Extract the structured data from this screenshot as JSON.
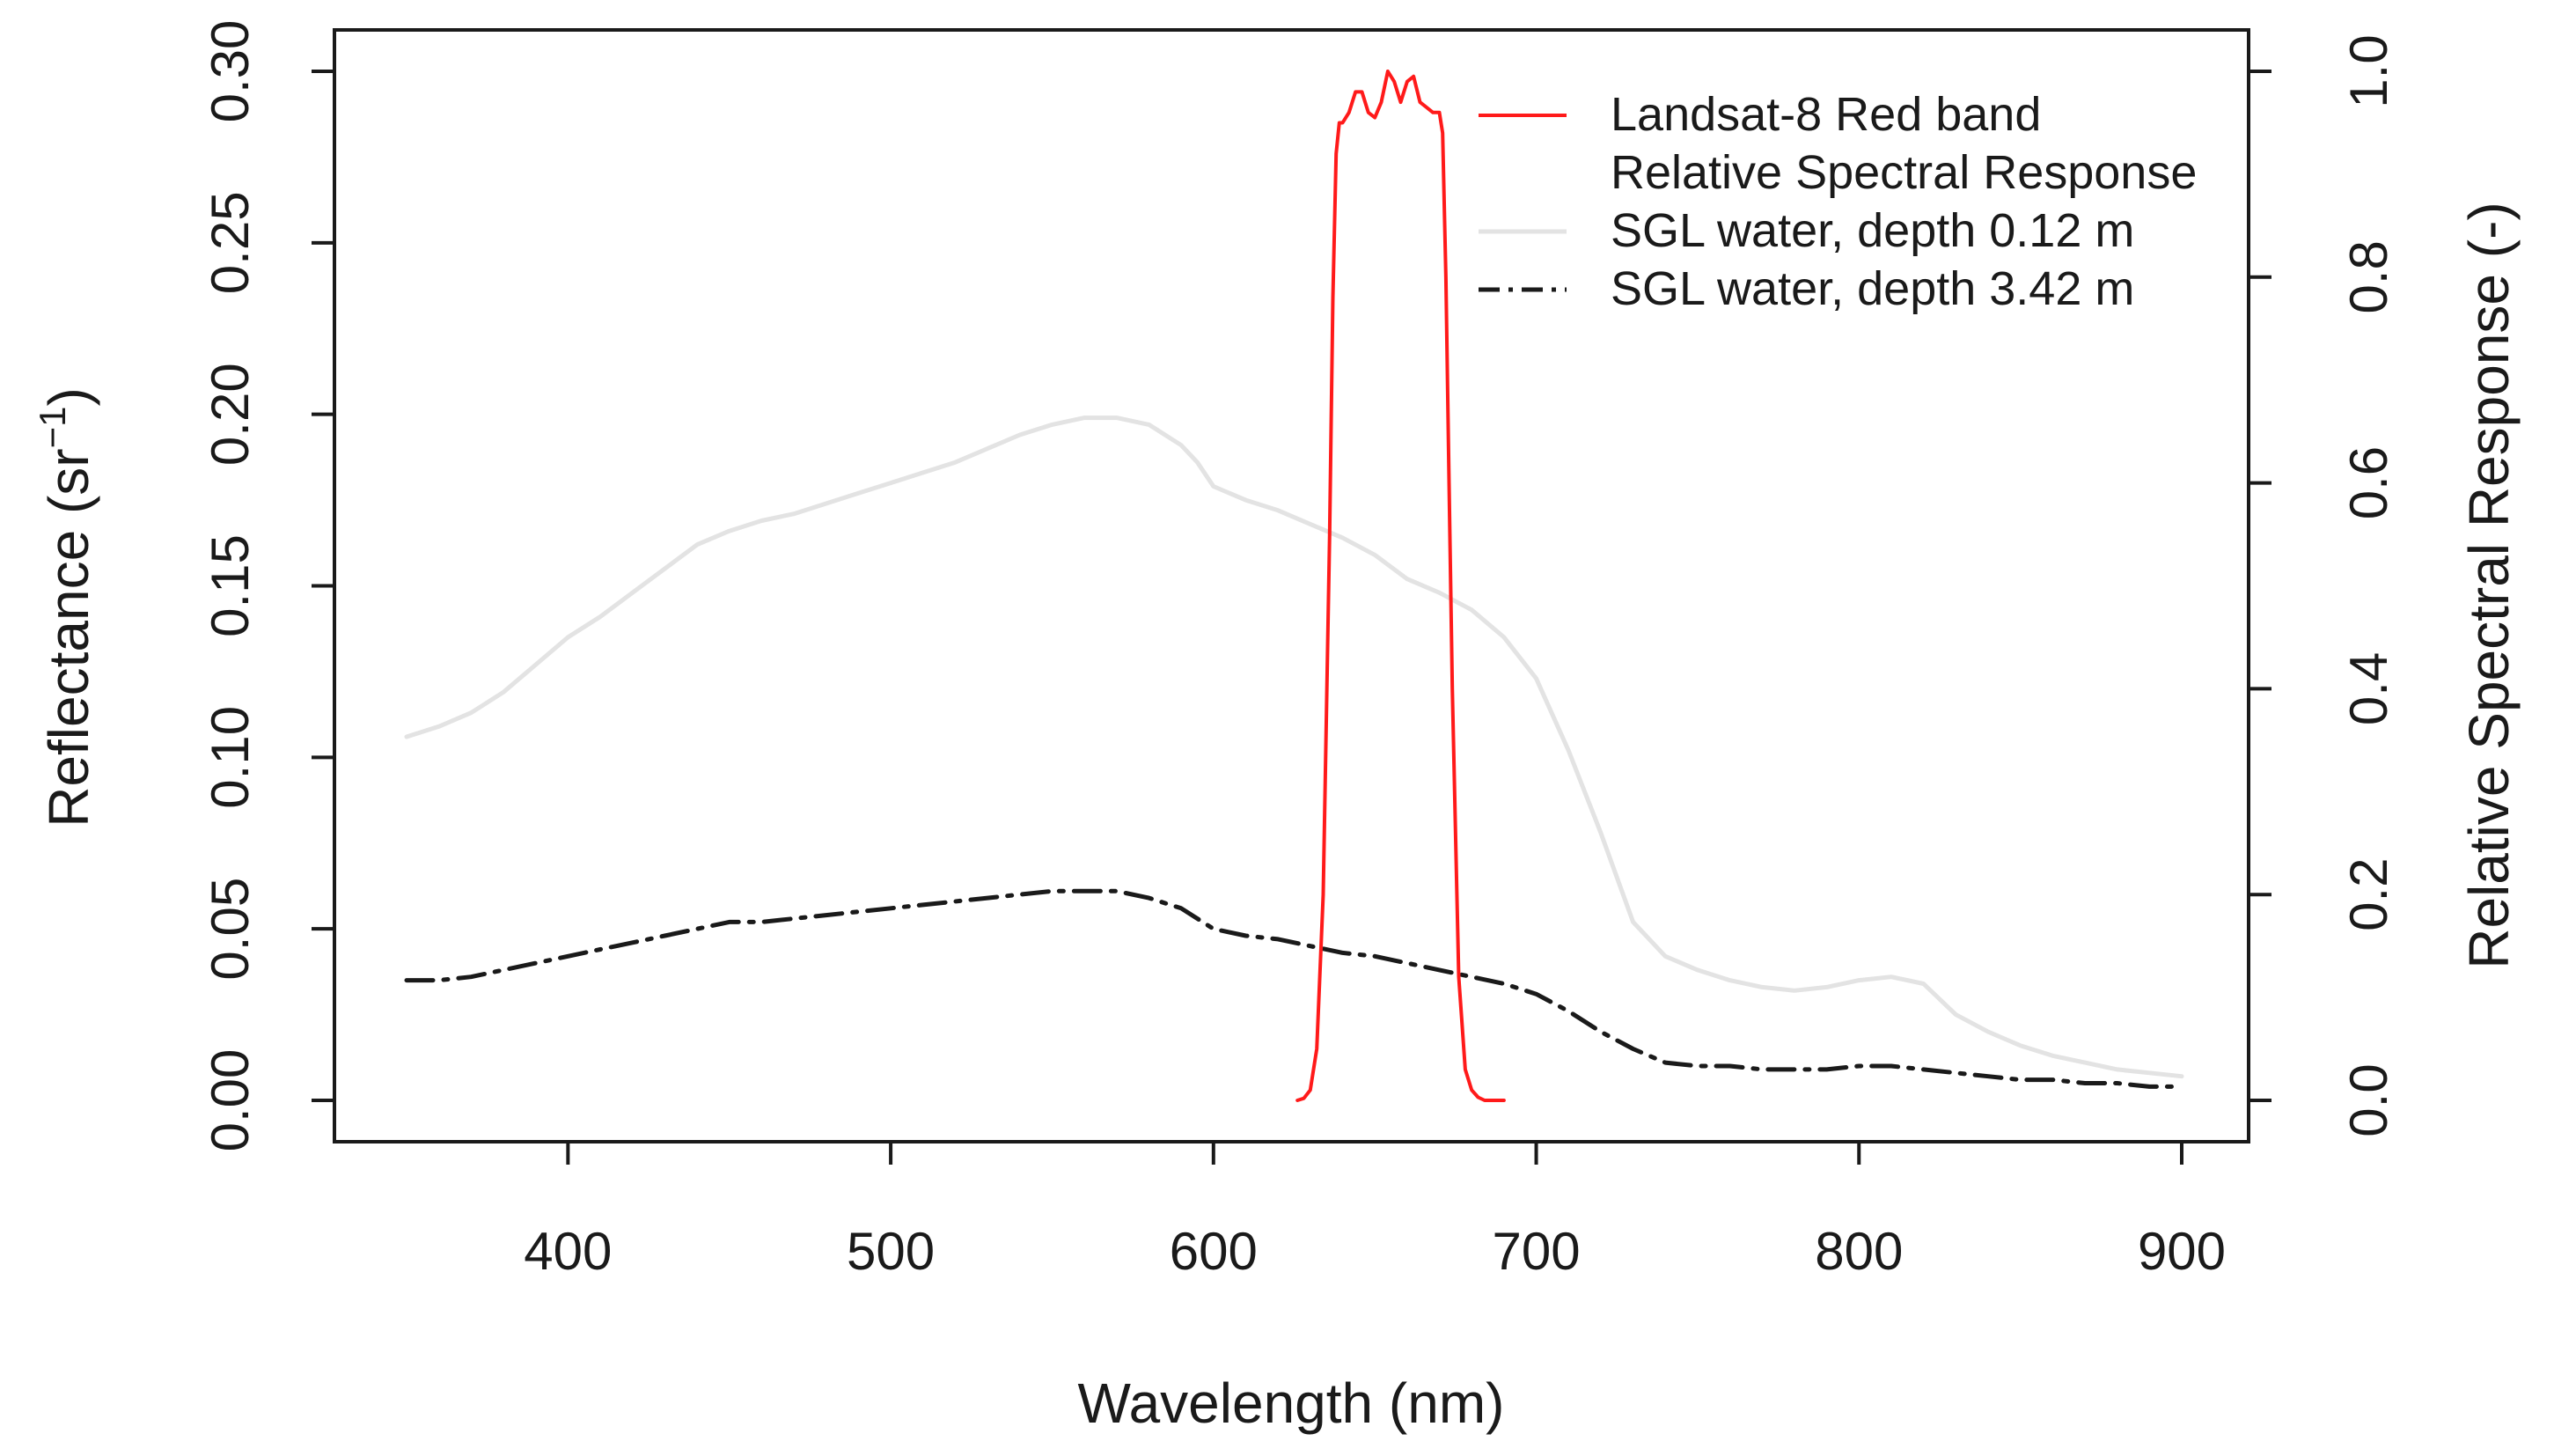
{
  "chart_data": {
    "type": "line",
    "title": "",
    "xlabel": "Wavelength (nm)",
    "ylabel": "Reflectance (sr",
    "ylabel_superscript": "−1",
    "ylabel_suffix": ")",
    "y2label": "Relative Spectral Response (-)",
    "xlim": [
      350,
      900
    ],
    "ylim": [
      0,
      0.3
    ],
    "y2lim": [
      0,
      1.0
    ],
    "xticks": [
      400,
      500,
      600,
      700,
      800,
      900
    ],
    "xtick_labels": [
      "400",
      "500",
      "600",
      "700",
      "800",
      "900"
    ],
    "yticks": [
      0.0,
      0.05,
      0.1,
      0.15,
      0.2,
      0.25,
      0.3
    ],
    "ytick_labels": [
      "0.00",
      "0.05",
      "0.10",
      "0.15",
      "0.20",
      "0.25",
      "0.30"
    ],
    "y2ticks": [
      0.0,
      0.2,
      0.4,
      0.6,
      0.8,
      1.0
    ],
    "y2tick_labels": [
      "0.0",
      "0.2",
      "0.4",
      "0.6",
      "0.8",
      "1.0"
    ],
    "grid": false,
    "legend_position": "top-right",
    "legend": {
      "entries": [
        {
          "label_lines": [
            "Landsat-8 Red band",
            "Relative Spectral Response"
          ]
        },
        {
          "label_lines": [
            "SGL water, depth 0.12 m"
          ]
        },
        {
          "label_lines": [
            "SGL water, depth 3.42 m"
          ]
        }
      ]
    },
    "series": [
      {
        "name": "SGL water, depth 0.12 m",
        "axis": "left",
        "color": "#e3e3e3",
        "dash": "solid",
        "x": [
          350,
          360,
          370,
          380,
          390,
          400,
          410,
          420,
          430,
          440,
          450,
          460,
          470,
          480,
          490,
          500,
          510,
          520,
          530,
          540,
          550,
          560,
          570,
          580,
          590,
          595,
          600,
          610,
          620,
          630,
          640,
          650,
          660,
          670,
          680,
          690,
          700,
          710,
          720,
          730,
          740,
          750,
          760,
          770,
          780,
          790,
          800,
          810,
          820,
          830,
          840,
          850,
          860,
          870,
          880,
          890,
          900
        ],
        "y": [
          0.106,
          0.109,
          0.113,
          0.119,
          0.127,
          0.135,
          0.141,
          0.148,
          0.155,
          0.162,
          0.166,
          0.169,
          0.171,
          0.174,
          0.177,
          0.18,
          0.183,
          0.186,
          0.19,
          0.194,
          0.197,
          0.199,
          0.199,
          0.197,
          0.191,
          0.186,
          0.179,
          0.175,
          0.172,
          0.168,
          0.164,
          0.159,
          0.152,
          0.148,
          0.143,
          0.135,
          0.123,
          0.102,
          0.078,
          0.052,
          0.042,
          0.038,
          0.035,
          0.033,
          0.032,
          0.033,
          0.035,
          0.036,
          0.034,
          0.025,
          0.02,
          0.016,
          0.013,
          0.011,
          0.009,
          0.008,
          0.007
        ]
      },
      {
        "name": "SGL water, depth 3.42 m",
        "axis": "left",
        "color": "#1a1a1a",
        "dash": "dash-dot",
        "x": [
          350,
          360,
          370,
          380,
          390,
          400,
          410,
          420,
          430,
          440,
          450,
          460,
          470,
          480,
          490,
          500,
          510,
          520,
          530,
          540,
          550,
          560,
          570,
          580,
          590,
          600,
          610,
          620,
          630,
          640,
          650,
          660,
          670,
          680,
          690,
          700,
          710,
          720,
          730,
          740,
          750,
          760,
          770,
          780,
          790,
          800,
          810,
          820,
          830,
          840,
          850,
          860,
          870,
          880,
          890,
          900
        ],
        "y": [
          0.035,
          0.035,
          0.036,
          0.038,
          0.04,
          0.042,
          0.044,
          0.046,
          0.048,
          0.05,
          0.052,
          0.052,
          0.053,
          0.054,
          0.055,
          0.056,
          0.057,
          0.058,
          0.059,
          0.06,
          0.061,
          0.061,
          0.061,
          0.059,
          0.056,
          0.05,
          0.048,
          0.047,
          0.045,
          0.043,
          0.042,
          0.04,
          0.038,
          0.036,
          0.034,
          0.031,
          0.026,
          0.02,
          0.015,
          0.011,
          0.01,
          0.01,
          0.009,
          0.009,
          0.009,
          0.01,
          0.01,
          0.009,
          0.008,
          0.007,
          0.006,
          0.006,
          0.005,
          0.005,
          0.004,
          0.004
        ]
      },
      {
        "name": "Landsat-8 Red band Relative Spectral Response",
        "axis": "right",
        "color": "#ff1a1a",
        "dash": "solid",
        "x": [
          626,
          628,
          630,
          632,
          634,
          636,
          637,
          638,
          639,
          640,
          642,
          644,
          646,
          648,
          650,
          652,
          654,
          656,
          658,
          660,
          662,
          664,
          666,
          668,
          670,
          671,
          672,
          673,
          674,
          676,
          678,
          680,
          682,
          684,
          690
        ],
        "y": [
          0.0,
          0.002,
          0.01,
          0.05,
          0.2,
          0.55,
          0.78,
          0.92,
          0.95,
          0.95,
          0.96,
          0.98,
          0.98,
          0.96,
          0.955,
          0.97,
          1.0,
          0.99,
          0.97,
          0.99,
          0.995,
          0.97,
          0.965,
          0.96,
          0.96,
          0.94,
          0.8,
          0.6,
          0.4,
          0.12,
          0.03,
          0.01,
          0.003,
          0.0,
          0.0
        ]
      }
    ]
  }
}
